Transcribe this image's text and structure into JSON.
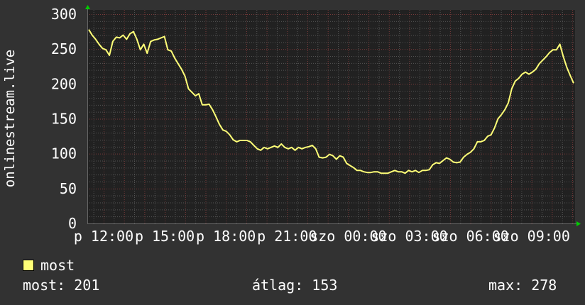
{
  "chart_data": {
    "type": "line",
    "ylabel": "onlinestream.live",
    "ylim": [
      0,
      300
    ],
    "yticks": [
      "0",
      "50",
      "100",
      "150",
      "200",
      "250",
      "300"
    ],
    "xticks": [
      "p 12:00",
      "p 15:00",
      "p 18:00",
      "p 21:00",
      "szo 00:00",
      "szo 03:00",
      "szo 06:00",
      "szo 09:00"
    ],
    "grid": true,
    "series": [
      {
        "name": "most",
        "color": "#ffff77",
        "values": [
          278,
          270,
          264,
          257,
          251,
          249,
          241,
          261,
          267,
          266,
          270,
          264,
          272,
          275,
          264,
          249,
          257,
          244,
          261,
          263,
          264,
          266,
          268,
          249,
          247,
          237,
          229,
          221,
          211,
          193,
          188,
          183,
          186,
          170,
          170,
          171,
          163,
          153,
          142,
          134,
          132,
          127,
          120,
          117,
          119,
          119,
          119,
          117,
          112,
          107,
          105,
          109,
          107,
          109,
          111,
          109,
          114,
          109,
          107,
          109,
          105,
          109,
          107,
          109,
          110,
          112,
          107,
          95,
          94,
          95,
          99,
          97,
          92,
          97,
          95,
          86,
          83,
          80,
          76,
          76,
          74,
          73,
          73,
          74,
          74,
          72,
          72,
          72,
          74,
          76,
          74,
          74,
          72,
          76,
          74,
          76,
          73,
          76,
          76,
          77,
          84,
          87,
          86,
          90,
          94,
          92,
          88,
          87,
          88,
          95,
          99,
          102,
          107,
          117,
          117,
          119,
          125,
          127,
          137,
          150,
          156,
          163,
          173,
          193,
          204,
          208,
          214,
          217,
          214,
          217,
          221,
          229,
          234,
          239,
          245,
          249,
          249,
          257,
          239,
          224,
          212,
          201
        ]
      }
    ]
  },
  "legend": {
    "series_label": "most",
    "current_label": "most: 201",
    "average_label": "átlag: 153",
    "max_label": "max: 278"
  },
  "colors": {
    "background": "#323232",
    "plot_background": "#212121",
    "line": "#ffff77",
    "minor_grid": "#555555",
    "major_grid": "#7a3a3a",
    "arrow": "#00cc00"
  }
}
